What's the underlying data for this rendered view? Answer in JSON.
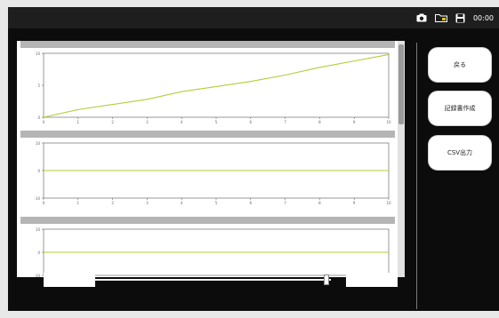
{
  "window": {
    "title": ""
  },
  "status": {
    "clock": "00:00",
    "icons": [
      "camera-icon",
      "folder-icon",
      "disk-icon"
    ]
  },
  "subheader": {
    "text": ""
  },
  "side_buttons": {
    "back": "戻る",
    "report": "記録書作成",
    "csv": "CSV出力"
  },
  "navigation": {
    "prev_label": "",
    "next_label": "",
    "slider_position": 0.98
  },
  "footer": {
    "left": "",
    "right": ""
  },
  "colors": {
    "series": "#b5cc3a",
    "panel_header": "#b5b5b5",
    "background": "#0c0c0c"
  },
  "chart_data": [
    {
      "type": "line",
      "title": "",
      "xlabel": "",
      "ylabel": "",
      "xlim": [
        0,
        10
      ],
      "ylim": [
        0,
        10
      ],
      "xticks": [
        0,
        1,
        2,
        3,
        4,
        5,
        6,
        7,
        8,
        9,
        10
      ],
      "series": [
        {
          "x": [
            0,
            1,
            2,
            3,
            4,
            5,
            6,
            7,
            8,
            9,
            10
          ],
          "y": [
            0,
            1.2,
            2,
            2.8,
            4,
            4.8,
            5.6,
            6.6,
            7.8,
            8.8,
            9.8
          ]
        }
      ]
    },
    {
      "type": "line",
      "title": "",
      "xlabel": "",
      "ylabel": "",
      "xlim": [
        0,
        10
      ],
      "ylim": [
        -10,
        10
      ],
      "xticks": [
        0,
        1,
        2,
        3,
        4,
        5,
        6,
        7,
        8,
        9,
        10
      ],
      "series": [
        {
          "x": [
            0,
            10
          ],
          "y": [
            0,
            0
          ]
        }
      ]
    },
    {
      "type": "line",
      "title": "",
      "xlabel": "",
      "ylabel": "",
      "xlim": [
        0,
        10
      ],
      "ylim": [
        -10,
        10
      ],
      "xticks": [],
      "series": [
        {
          "x": [
            0,
            10
          ],
          "y": [
            0,
            0
          ]
        }
      ]
    }
  ]
}
